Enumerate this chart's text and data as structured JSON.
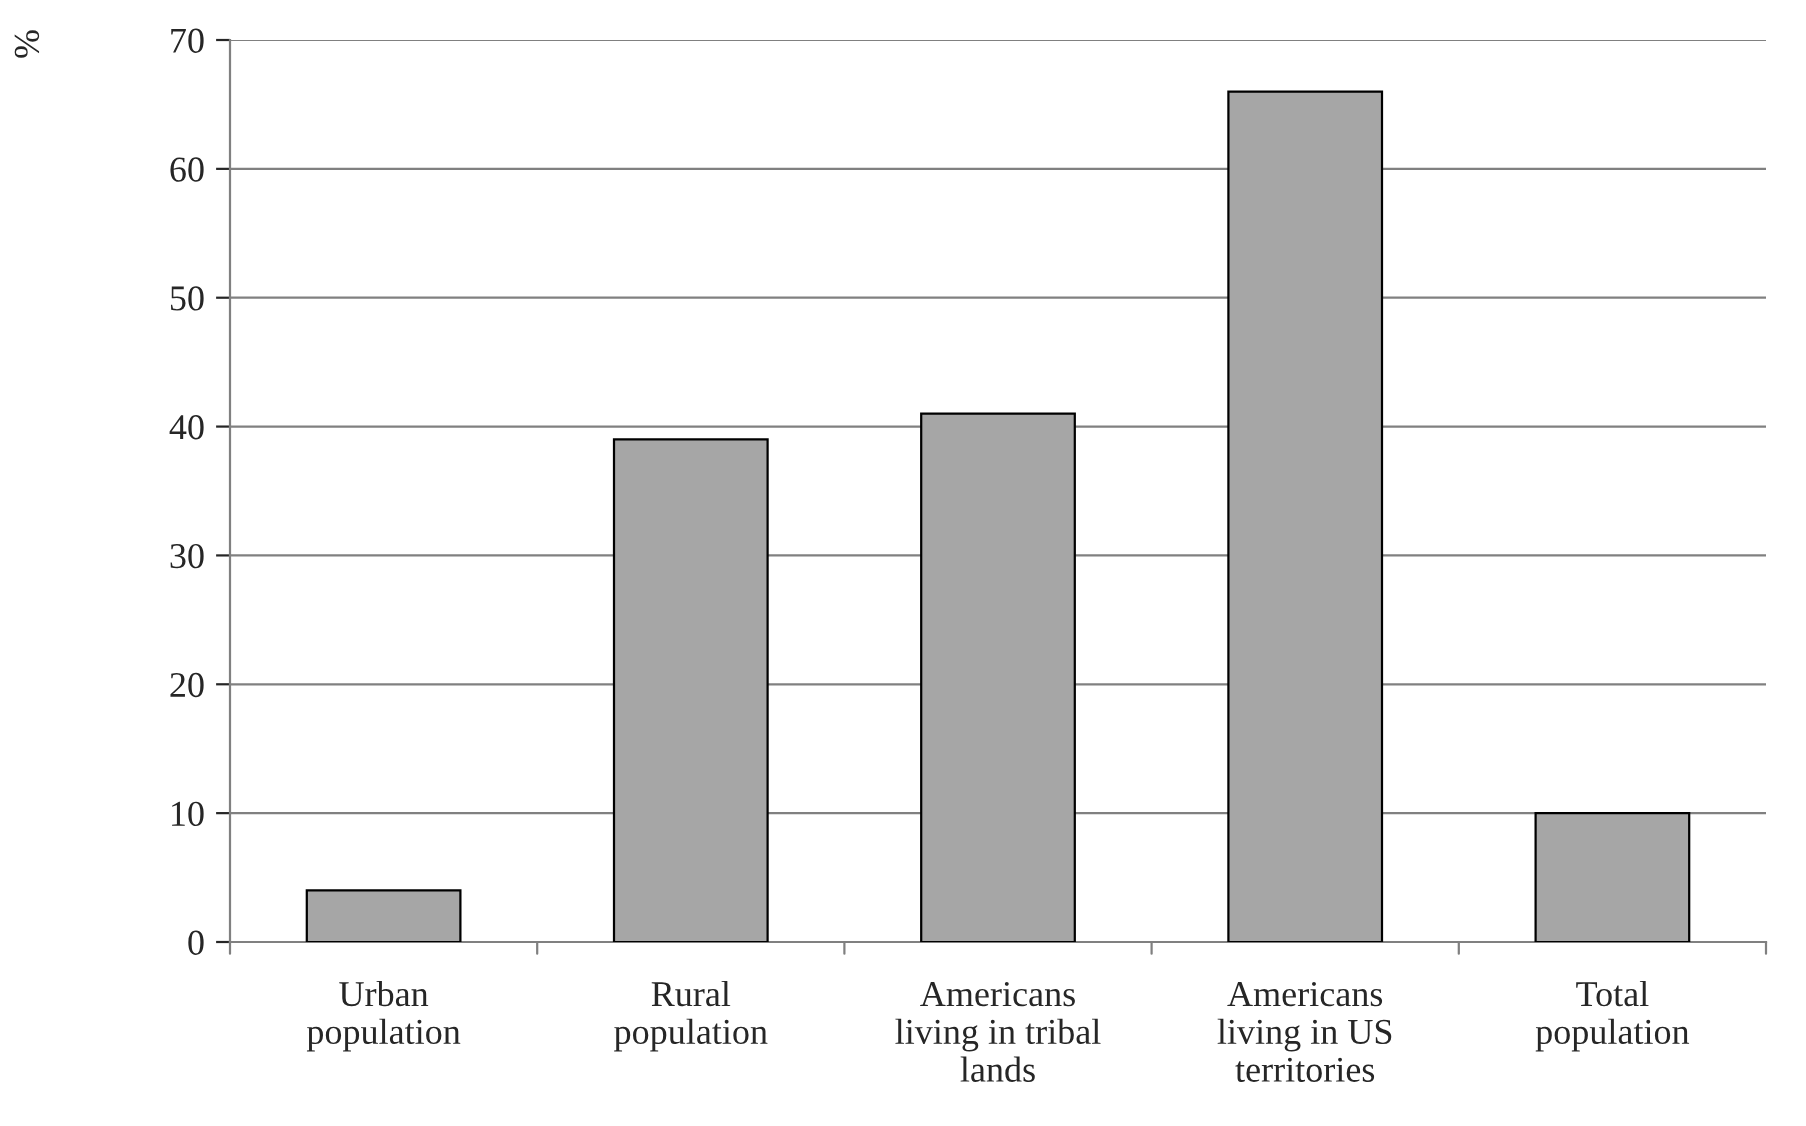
{
  "chart_data": {
    "type": "bar",
    "ylabel": "%",
    "categories": [
      "Urban\npopulation",
      "Rural\npopulation",
      "Americans\nliving in tribal\nlands",
      "Americans\nliving in US\nterritories",
      "Total\npopulation"
    ],
    "values": [
      4,
      39,
      41,
      66,
      10
    ],
    "color": "#a6a6a6",
    "ylim": [
      0,
      70
    ],
    "yticks": [
      0,
      10,
      20,
      30,
      40,
      50,
      60,
      70
    ],
    "grid": "y",
    "legend": false
  }
}
